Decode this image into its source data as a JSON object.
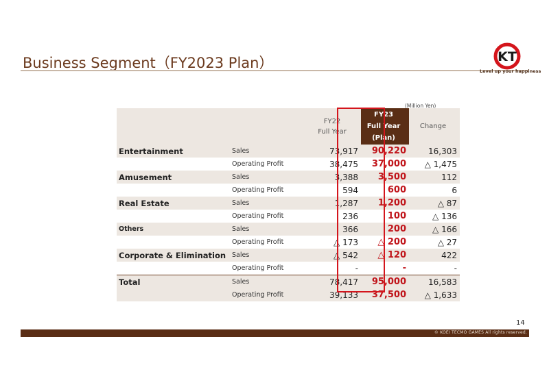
{
  "header": {
    "title": "Business Segment（FY2023 Plan）",
    "logo_text": "KT",
    "tagline": "Level up your happiness"
  },
  "unit": "(Million Yen)",
  "table": {
    "columns": {
      "fy22": [
        "FY22",
        "Full Year"
      ],
      "fy23": [
        "FY23",
        "Full Year",
        "(Plan)"
      ],
      "change": "Change"
    },
    "segments": [
      {
        "name": "Entertainment",
        "small": false,
        "rows": [
          {
            "item": "Sales",
            "fy22": "73,917",
            "fy23": "90,220",
            "change": "16,303"
          },
          {
            "item": "Operating Profit",
            "fy22": "38,475",
            "fy23": "37,000",
            "change": "△ 1,475"
          }
        ]
      },
      {
        "name": "Amusement",
        "small": false,
        "rows": [
          {
            "item": "Sales",
            "fy22": "3,388",
            "fy23": "3,500",
            "change": "112"
          },
          {
            "item": "Operating Profit",
            "fy22": "594",
            "fy23": "600",
            "change": "6"
          }
        ]
      },
      {
        "name": "Real Estate",
        "small": false,
        "rows": [
          {
            "item": "Sales",
            "fy22": "1,287",
            "fy23": "1,200",
            "change": "△ 87"
          },
          {
            "item": "Operating Profit",
            "fy22": "236",
            "fy23": "100",
            "change": "△ 136"
          }
        ]
      },
      {
        "name": "Others",
        "small": true,
        "rows": [
          {
            "item": "Sales",
            "fy22": "366",
            "fy23": "200",
            "change": "△ 166"
          },
          {
            "item": "Operating Profit",
            "fy22": "△ 173",
            "fy23": "△ 200",
            "change": "△ 27"
          }
        ]
      },
      {
        "name": "Corporate & Elimination",
        "small": false,
        "rows": [
          {
            "item": "Sales",
            "fy22": "△ 542",
            "fy23": "△ 120",
            "change": "422"
          },
          {
            "item": "Operating Profit",
            "fy22": "-",
            "fy23": "-",
            "change": "-"
          }
        ]
      },
      {
        "name": "Total",
        "small": false,
        "rows": [
          {
            "item": "Sales",
            "fy22": "78,417",
            "fy23": "95,000",
            "change": "16,583"
          },
          {
            "item": "Operating Profit",
            "fy22": "39,133",
            "fy23": "37,500",
            "change": "△ 1,633"
          }
        ]
      }
    ]
  },
  "footer": {
    "page_number": "14",
    "copyright": "© KOEI TECMO GAMES All rights reserved."
  },
  "colors": {
    "brand_brown": "#5a2e15",
    "title_brown": "#6b3a1e",
    "highlight_red": "#c0141a",
    "row_shade": "#ede7e1"
  }
}
